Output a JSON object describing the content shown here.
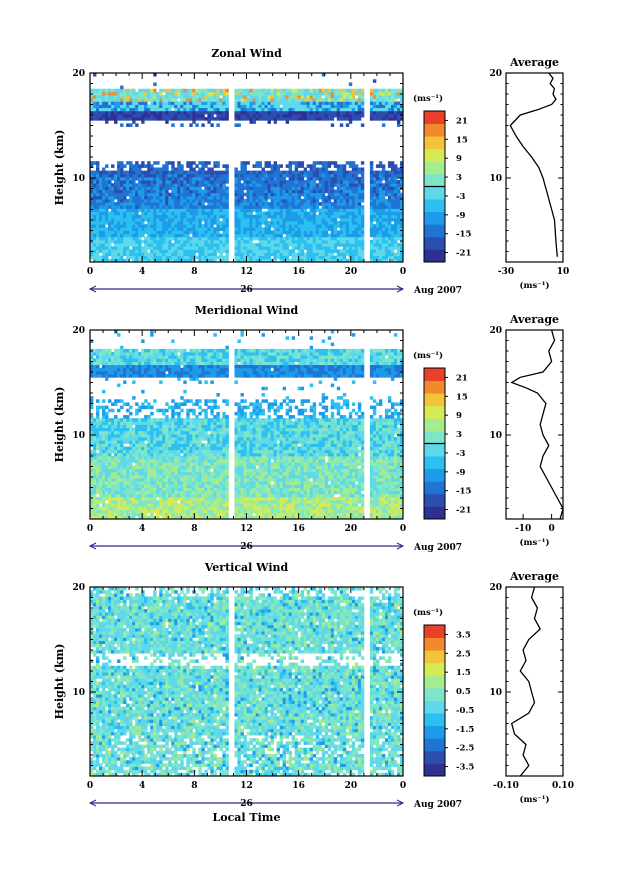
{
  "chart_data": [
    {
      "type": "heatmap",
      "title": "Zonal Wind",
      "ylabel": "Height (km)",
      "xlabel": "",
      "x_ticks": [
        "0",
        "4",
        "8",
        "12",
        "16",
        "20",
        "0"
      ],
      "y_ticks": [
        "20",
        "10"
      ],
      "xlim": [
        0,
        24
      ],
      "ylim": [
        2,
        20
      ],
      "date_label": "26",
      "date_suffix": "Aug 2007",
      "colorbar": {
        "unit": "(ms⁻¹)",
        "range": [
          -24,
          24
        ],
        "ticks": [
          "21",
          "15",
          "9",
          "3",
          "-3",
          "-9",
          "-15",
          "-21"
        ],
        "marked_level": 0
      },
      "profile": {
        "title": "Average",
        "xlabel": "(ms⁻¹)",
        "x_ticks": [
          "-30",
          "10"
        ],
        "xlim": [
          -30,
          10
        ],
        "y_ticks": [
          "20",
          "10"
        ],
        "heights": [
          2.5,
          4,
          6,
          8,
          10,
          11,
          12,
          13,
          14,
          15,
          16,
          16.5,
          17,
          17.5,
          18,
          18.5,
          19,
          19.5,
          20
        ],
        "values": [
          6,
          5,
          4,
          0,
          -4,
          -7,
          -12,
          -18,
          -23,
          -27,
          -20,
          -8,
          2,
          5,
          3,
          4,
          1,
          3,
          0
        ]
      }
    },
    {
      "type": "heatmap",
      "title": "Meridional Wind",
      "ylabel": "Height (km)",
      "xlabel": "",
      "x_ticks": [
        "0",
        "4",
        "8",
        "12",
        "16",
        "20",
        "0"
      ],
      "y_ticks": [
        "20",
        "10"
      ],
      "xlim": [
        0,
        24
      ],
      "ylim": [
        2,
        20
      ],
      "date_label": "26",
      "date_suffix": "Aug 2007",
      "colorbar": {
        "unit": "(ms⁻¹)",
        "range": [
          -24,
          24
        ],
        "ticks": [
          "21",
          "15",
          "9",
          "3",
          "-3",
          "-9",
          "-15",
          "-21"
        ],
        "marked_level": 0
      },
      "profile": {
        "title": "Average",
        "xlabel": "(ms⁻¹)",
        "x_ticks": [
          "-10",
          "0"
        ],
        "xlim": [
          -16,
          4
        ],
        "y_ticks": [
          "20",
          "10"
        ],
        "heights": [
          2,
          3,
          4,
          5,
          6,
          7,
          8,
          9,
          10,
          11,
          12,
          13,
          14,
          14.5,
          15,
          15.5,
          16,
          17,
          18,
          19,
          20
        ],
        "values": [
          3,
          4,
          2,
          0,
          -2,
          -4,
          -3,
          -1,
          -3,
          -4,
          -3,
          -2,
          -5,
          -9,
          -14,
          -11,
          -3,
          0,
          -1,
          1,
          0
        ]
      }
    },
    {
      "type": "heatmap",
      "title": "Vertical Wind",
      "ylabel": "Height (km)",
      "xlabel": "Local Time",
      "x_ticks": [
        "0",
        "4",
        "8",
        "12",
        "16",
        "20",
        "0"
      ],
      "y_ticks": [
        "20",
        "10"
      ],
      "xlim": [
        0,
        24
      ],
      "ylim": [
        2,
        20
      ],
      "date_label": "26",
      "date_suffix": "Aug 2007",
      "colorbar": {
        "unit": "(ms⁻¹)",
        "range": [
          -4,
          4
        ],
        "ticks": [
          "3.5",
          "2.5",
          "1.5",
          "0.5",
          "-0.5",
          "-1.5",
          "-2.5",
          "-3.5"
        ],
        "marked_level": null
      },
      "profile": {
        "title": "Average",
        "xlabel": "(ms⁻¹)",
        "x_ticks": [
          "-0.10",
          "0.10"
        ],
        "xlim": [
          -0.1,
          0.1
        ],
        "y_ticks": [
          "20",
          "10"
        ],
        "heights": [
          2,
          3,
          4,
          5,
          6,
          7,
          8,
          9,
          10,
          11,
          12,
          13,
          14,
          15,
          16,
          17,
          18,
          19,
          20
        ],
        "values": [
          -0.05,
          -0.02,
          -0.04,
          -0.03,
          -0.07,
          -0.08,
          -0.02,
          0.0,
          -0.01,
          -0.02,
          -0.05,
          -0.03,
          -0.04,
          -0.02,
          0.02,
          0.0,
          0.01,
          -0.01,
          0.0
        ]
      }
    }
  ]
}
